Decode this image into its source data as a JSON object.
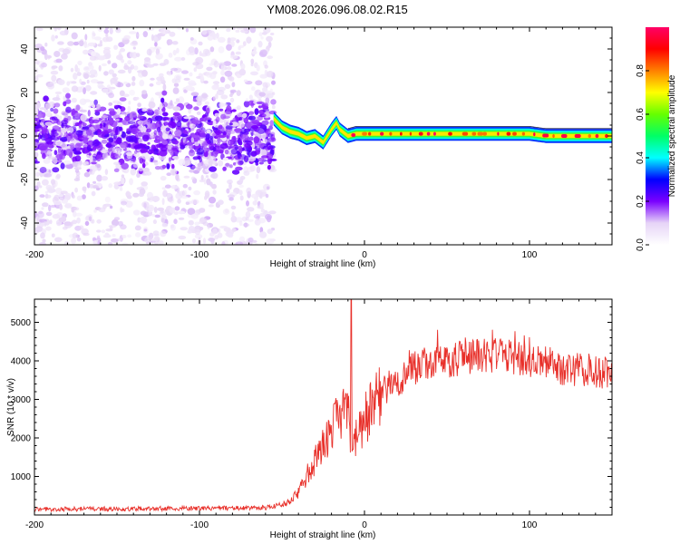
{
  "page": {
    "title": "YM08.2026.096.08.02.R15"
  },
  "chart_data": [
    {
      "type": "heatmap",
      "title": "YM08.2026.096.08.02.R15",
      "xlabel": "Height of straight line (km)",
      "ylabel": "Frequency (Hz)",
      "xlim": [
        -200,
        150
      ],
      "ylim": [
        -50,
        50
      ],
      "xticks": [
        -200,
        -100,
        0,
        100
      ],
      "yticks": [
        -40,
        -20,
        0,
        20,
        40
      ],
      "noise_region_x": [
        -200,
        -55
      ],
      "signal_ridge": {
        "x": [
          -55,
          -50,
          -45,
          -40,
          -35,
          -30,
          -25,
          -20,
          -17,
          -15,
          -10,
          -5,
          0,
          20,
          50,
          80,
          100,
          110,
          150
        ],
        "freq": [
          8,
          4,
          2,
          1,
          -1,
          0,
          -3,
          3,
          6,
          3,
          0,
          1,
          1,
          1,
          1,
          1,
          1,
          0,
          0
        ]
      },
      "colorbar": {
        "label": "Normalized spectral amplitude",
        "range": [
          0,
          1
        ],
        "ticks": [
          "0.0",
          "0.2",
          "0.4",
          "0.6",
          "0.8"
        ],
        "colors": [
          "#ffffff",
          "#e6d4f7",
          "#7a00ff",
          "#0000ff",
          "#00ffff",
          "#00ff66",
          "#66ff00",
          "#ffff00",
          "#ff8000",
          "#ff0000",
          "#ff0066"
        ]
      }
    },
    {
      "type": "line",
      "xlabel": "Height of straight line (km)",
      "ylabel": "SNR (10 * v/v)",
      "xlim": [
        -200,
        150
      ],
      "ylim": [
        0,
        5600
      ],
      "xticks": [
        -200,
        -100,
        0,
        100
      ],
      "yticks": [
        1000,
        2000,
        3000,
        4000,
        5000
      ],
      "series": [
        {
          "name": "SNR",
          "color": "#e8302a",
          "x": [
            -200,
            -150,
            -100,
            -60,
            -50,
            -45,
            -40,
            -35,
            -30,
            -25,
            -20,
            -15,
            -12,
            -10,
            -8,
            -5,
            0,
            10,
            20,
            30,
            40,
            50,
            60,
            70,
            80,
            90,
            100,
            110,
            120,
            130,
            140,
            150
          ],
          "y": [
            150,
            160,
            170,
            190,
            260,
            350,
            600,
            1000,
            1400,
            1800,
            2300,
            2500,
            2600,
            2700,
            1700,
            2100,
            2500,
            3100,
            3500,
            3800,
            3950,
            4000,
            4080,
            4120,
            4150,
            4100,
            4000,
            3950,
            3800,
            3750,
            3750,
            3700
          ],
          "spike": {
            "x": -8,
            "y": 5600
          }
        }
      ]
    }
  ]
}
